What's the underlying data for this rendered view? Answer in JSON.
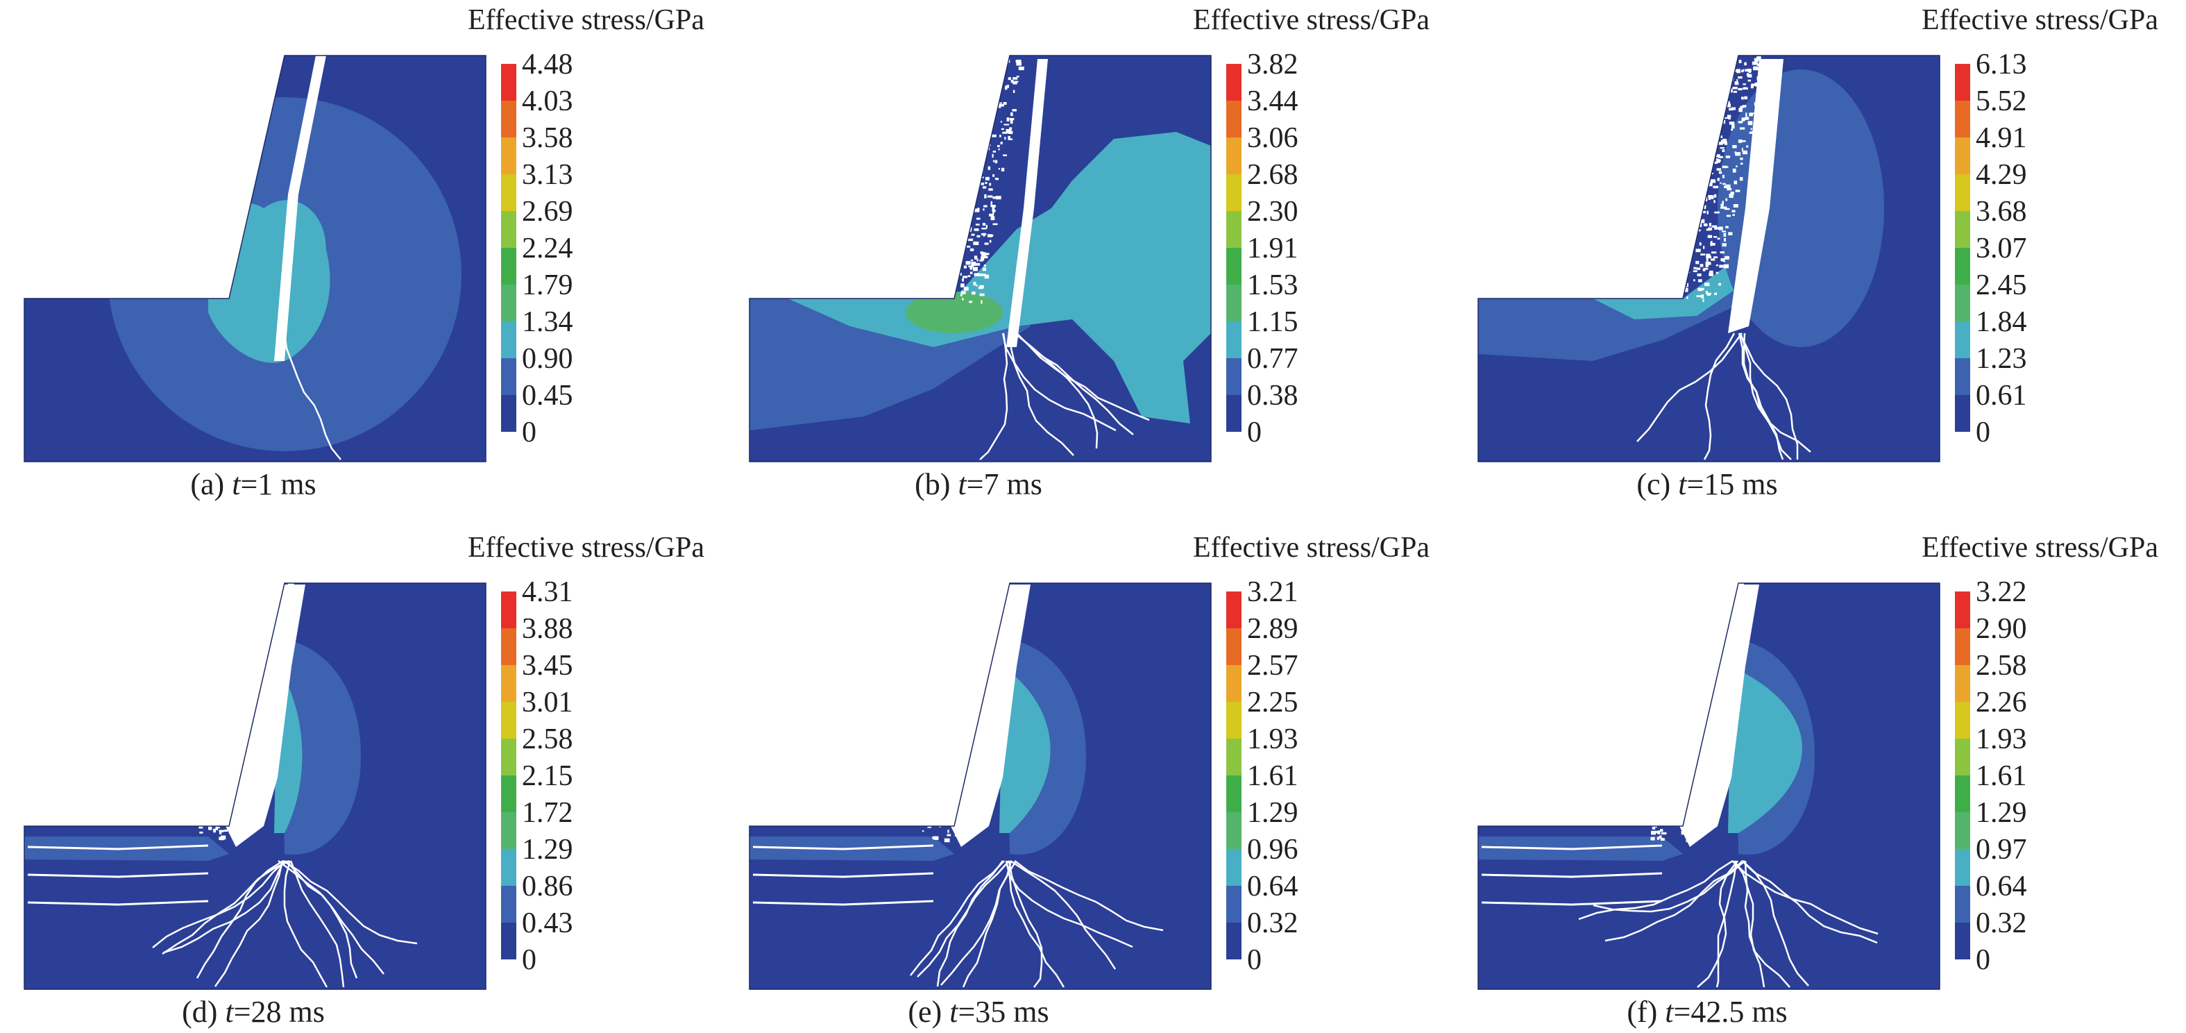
{
  "colors": {
    "scale": [
      "#2b3f97",
      "#3c62b0",
      "#49afc4",
      "#55b46c",
      "#3fae49",
      "#8bc53f",
      "#d6c81e",
      "#eca52b",
      "#e86b25",
      "#e8302a"
    ],
    "deep_blue": "#2b3f97",
    "mid_blue": "#3c62b0",
    "cyan": "#49afc4",
    "green": "#55b46c",
    "bright_green": "#3fae49",
    "crack": "#ffffff"
  },
  "chart_data": [
    {
      "type": "heatmap",
      "title": "Effective stress/GPa",
      "caption_label": "(a) ",
      "caption_t": "t",
      "caption_value": "=1 ms",
      "colorbar_ticks": [
        "4.48",
        "4.03",
        "3.58",
        "3.13",
        "2.69",
        "2.24",
        "1.79",
        "1.34",
        "0.90",
        "0.45",
        "0"
      ]
    },
    {
      "type": "heatmap",
      "title": "Effective stress/GPa",
      "caption_label": "(b) ",
      "caption_t": "t",
      "caption_value": "=7 ms",
      "colorbar_ticks": [
        "3.82",
        "3.44",
        "3.06",
        "2.68",
        "2.30",
        "1.91",
        "1.53",
        "1.15",
        "0.77",
        "0.38",
        "0"
      ]
    },
    {
      "type": "heatmap",
      "title": "Effective stress/GPa",
      "caption_label": "(c) ",
      "caption_t": "t",
      "caption_value": "=15 ms",
      "colorbar_ticks": [
        "6.13",
        "5.52",
        "4.91",
        "4.29",
        "3.68",
        "3.07",
        "2.45",
        "1.84",
        "1.23",
        "0.61",
        "0"
      ]
    },
    {
      "type": "heatmap",
      "title": "Effective stress/GPa",
      "caption_label": "(d) ",
      "caption_t": "t",
      "caption_value": "=28 ms",
      "colorbar_ticks": [
        "4.31",
        "3.88",
        "3.45",
        "3.01",
        "2.58",
        "2.15",
        "1.72",
        "1.29",
        "0.86",
        "0.43",
        "0"
      ]
    },
    {
      "type": "heatmap",
      "title": "Effective stress/GPa",
      "caption_label": "(e) ",
      "caption_t": "t",
      "caption_value": "=35 ms",
      "colorbar_ticks": [
        "3.21",
        "2.89",
        "2.57",
        "2.25",
        "1.93",
        "1.61",
        "1.29",
        "0.96",
        "0.64",
        "0.32",
        "0"
      ]
    },
    {
      "type": "heatmap",
      "title": "Effective stress/GPa",
      "caption_label": "(f) ",
      "caption_t": "t",
      "caption_value": "=42.5 ms",
      "colorbar_ticks": [
        "3.22",
        "2.90",
        "2.58",
        "2.26",
        "1.93",
        "1.61",
        "1.29",
        "0.97",
        "0.64",
        "0.32",
        "0"
      ]
    }
  ]
}
